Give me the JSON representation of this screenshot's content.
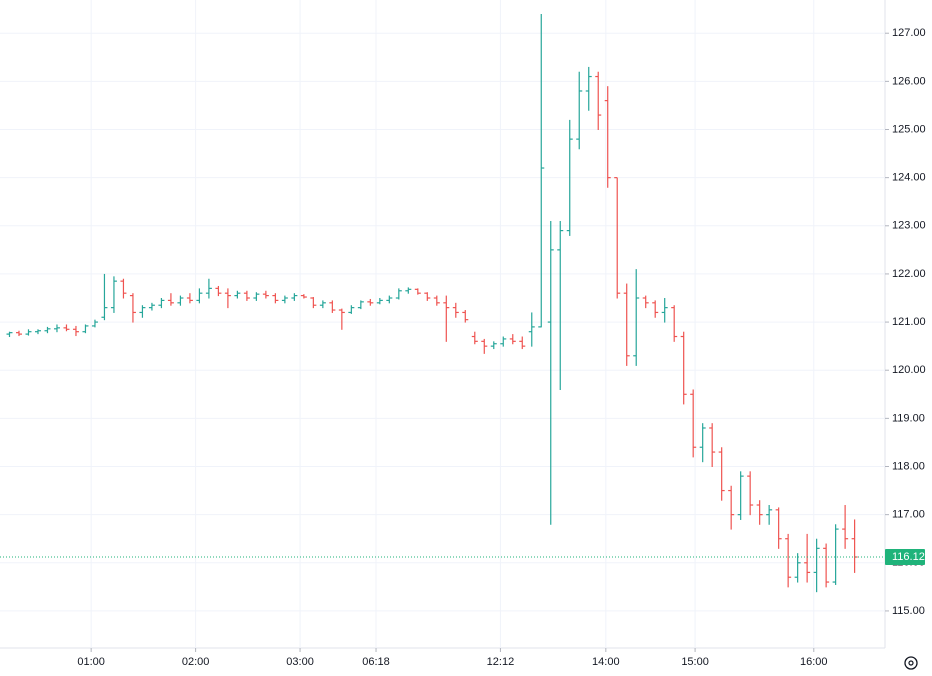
{
  "chart_data": {
    "type": "ohlc",
    "open": [
      120.75,
      120.78,
      120.75,
      120.8,
      120.82,
      120.86,
      120.88,
      120.85,
      120.8,
      120.92,
      121.1,
      121.3,
      121.85,
      121.55,
      121.2,
      121.3,
      121.35,
      121.45,
      121.4,
      121.5,
      121.45,
      121.6,
      121.7,
      121.6,
      121.55,
      121.6,
      121.5,
      121.58,
      121.55,
      121.45,
      121.5,
      121.55,
      121.5,
      121.35,
      121.4,
      121.25,
      121.2,
      121.3,
      121.42,
      121.4,
      121.45,
      121.5,
      121.65,
      121.68,
      121.6,
      121.5,
      121.4,
      121.3,
      121.2,
      120.7,
      120.6,
      120.5,
      120.55,
      120.65,
      120.6,
      120.8,
      120.9,
      121.0,
      122.5,
      122.9,
      124.8,
      125.8,
      126.1,
      125.6,
      124.0,
      121.6,
      120.3,
      121.5,
      121.4,
      121.2,
      121.3,
      120.7,
      119.5,
      118.4,
      118.8,
      118.3,
      117.5,
      117.0,
      117.8,
      117.2,
      117.0,
      117.1,
      116.5,
      115.7,
      116.0,
      115.8,
      116.3,
      115.6,
      116.7,
      116.5
    ],
    "high": [
      120.8,
      120.82,
      120.85,
      120.85,
      120.9,
      120.95,
      120.95,
      120.92,
      120.95,
      121.05,
      122.0,
      121.95,
      121.9,
      121.6,
      121.35,
      121.4,
      121.5,
      121.6,
      121.55,
      121.6,
      121.7,
      121.9,
      121.75,
      121.7,
      121.65,
      121.65,
      121.62,
      121.65,
      121.6,
      121.55,
      121.6,
      121.58,
      121.52,
      121.45,
      121.45,
      121.28,
      121.35,
      121.45,
      121.48,
      121.5,
      121.55,
      121.7,
      121.72,
      121.7,
      121.62,
      121.55,
      121.55,
      121.4,
      121.25,
      120.8,
      120.65,
      120.6,
      120.7,
      120.75,
      120.7,
      121.2,
      127.4,
      123.1,
      123.1,
      125.2,
      126.2,
      126.3,
      126.2,
      125.9,
      124.0,
      121.8,
      122.1,
      121.55,
      121.45,
      121.5,
      121.35,
      120.8,
      119.6,
      118.9,
      118.9,
      118.4,
      117.6,
      117.9,
      117.9,
      117.3,
      117.2,
      117.15,
      116.6,
      116.2,
      116.6,
      116.5,
      116.4,
      116.8,
      117.2,
      116.9
    ],
    "low": [
      120.7,
      120.72,
      120.73,
      120.76,
      120.78,
      120.8,
      120.82,
      120.72,
      120.78,
      120.9,
      121.05,
      121.2,
      121.5,
      121.0,
      121.1,
      121.25,
      121.3,
      121.35,
      121.35,
      121.4,
      121.4,
      121.5,
      121.55,
      121.3,
      121.5,
      121.45,
      121.45,
      121.5,
      121.4,
      121.4,
      121.45,
      121.5,
      121.3,
      121.3,
      121.2,
      120.85,
      121.18,
      121.28,
      121.35,
      121.38,
      121.4,
      121.48,
      121.6,
      121.58,
      121.45,
      121.35,
      120.6,
      121.1,
      121.0,
      120.55,
      120.35,
      120.45,
      120.5,
      120.55,
      120.45,
      120.5,
      120.9,
      116.8,
      119.6,
      122.8,
      124.6,
      125.4,
      125.0,
      123.8,
      121.5,
      120.1,
      120.1,
      121.3,
      121.1,
      121.0,
      120.6,
      119.3,
      118.2,
      118.1,
      118.0,
      117.3,
      116.7,
      116.9,
      117.0,
      116.8,
      116.8,
      116.3,
      115.5,
      115.6,
      115.6,
      115.4,
      115.5,
      115.55,
      116.3,
      115.8
    ],
    "close": [
      120.78,
      120.75,
      120.8,
      120.82,
      120.86,
      120.88,
      120.85,
      120.8,
      120.92,
      121.0,
      121.3,
      121.85,
      121.6,
      121.2,
      121.3,
      121.35,
      121.45,
      121.4,
      121.5,
      121.45,
      121.6,
      121.7,
      121.6,
      121.55,
      121.6,
      121.5,
      121.58,
      121.55,
      121.45,
      121.5,
      121.55,
      121.52,
      121.35,
      121.4,
      121.25,
      121.2,
      121.3,
      121.42,
      121.4,
      121.45,
      121.5,
      121.65,
      121.68,
      121.6,
      121.5,
      121.4,
      121.3,
      121.2,
      121.05,
      120.6,
      120.5,
      120.55,
      120.65,
      120.6,
      120.5,
      120.9,
      124.2,
      122.5,
      122.9,
      124.8,
      125.8,
      126.1,
      125.3,
      124.0,
      121.6,
      120.3,
      121.5,
      121.4,
      121.2,
      121.3,
      120.7,
      119.5,
      118.4,
      118.8,
      118.3,
      117.5,
      117.0,
      117.8,
      117.2,
      117.0,
      117.1,
      116.5,
      115.7,
      116.0,
      115.8,
      116.3,
      115.6,
      116.7,
      116.5,
      116.12
    ],
    "up_color": "#26a69a",
    "down_color": "#ef5350",
    "xlim": [
      -1,
      92.2
    ],
    "xticks": [
      {
        "value": 8.6,
        "label": "01:00"
      },
      {
        "value": 19.6,
        "label": "02:00"
      },
      {
        "value": 30.6,
        "label": "03:00"
      },
      {
        "value": 38.6,
        "label": "06:18"
      },
      {
        "value": 51.7,
        "label": "12:12"
      },
      {
        "value": 62.8,
        "label": "14:00"
      },
      {
        "value": 72.2,
        "label": "15:00"
      },
      {
        "value": 84.7,
        "label": "16:00"
      }
    ],
    "ylim": [
      114.23,
      127.69
    ],
    "yticks": [
      {
        "value": 115,
        "label": "115.00"
      },
      {
        "value": 116,
        "label": "116.00"
      },
      {
        "value": 117,
        "label": "117.00"
      },
      {
        "value": 118,
        "label": "118.00"
      },
      {
        "value": 119,
        "label": "119.00"
      },
      {
        "value": 120,
        "label": "120.00"
      },
      {
        "value": 121,
        "label": "121.00"
      },
      {
        "value": 122,
        "label": "122.00"
      },
      {
        "value": 123,
        "label": "123.00"
      },
      {
        "value": 124,
        "label": "124.00"
      },
      {
        "value": 125,
        "label": "125.00"
      },
      {
        "value": 126,
        "label": "126.00"
      },
      {
        "value": 127,
        "label": "127.00"
      }
    ],
    "grid": true,
    "last_price": {
      "value": 116.12,
      "label": "116.12",
      "color": "#1fb37a"
    }
  }
}
